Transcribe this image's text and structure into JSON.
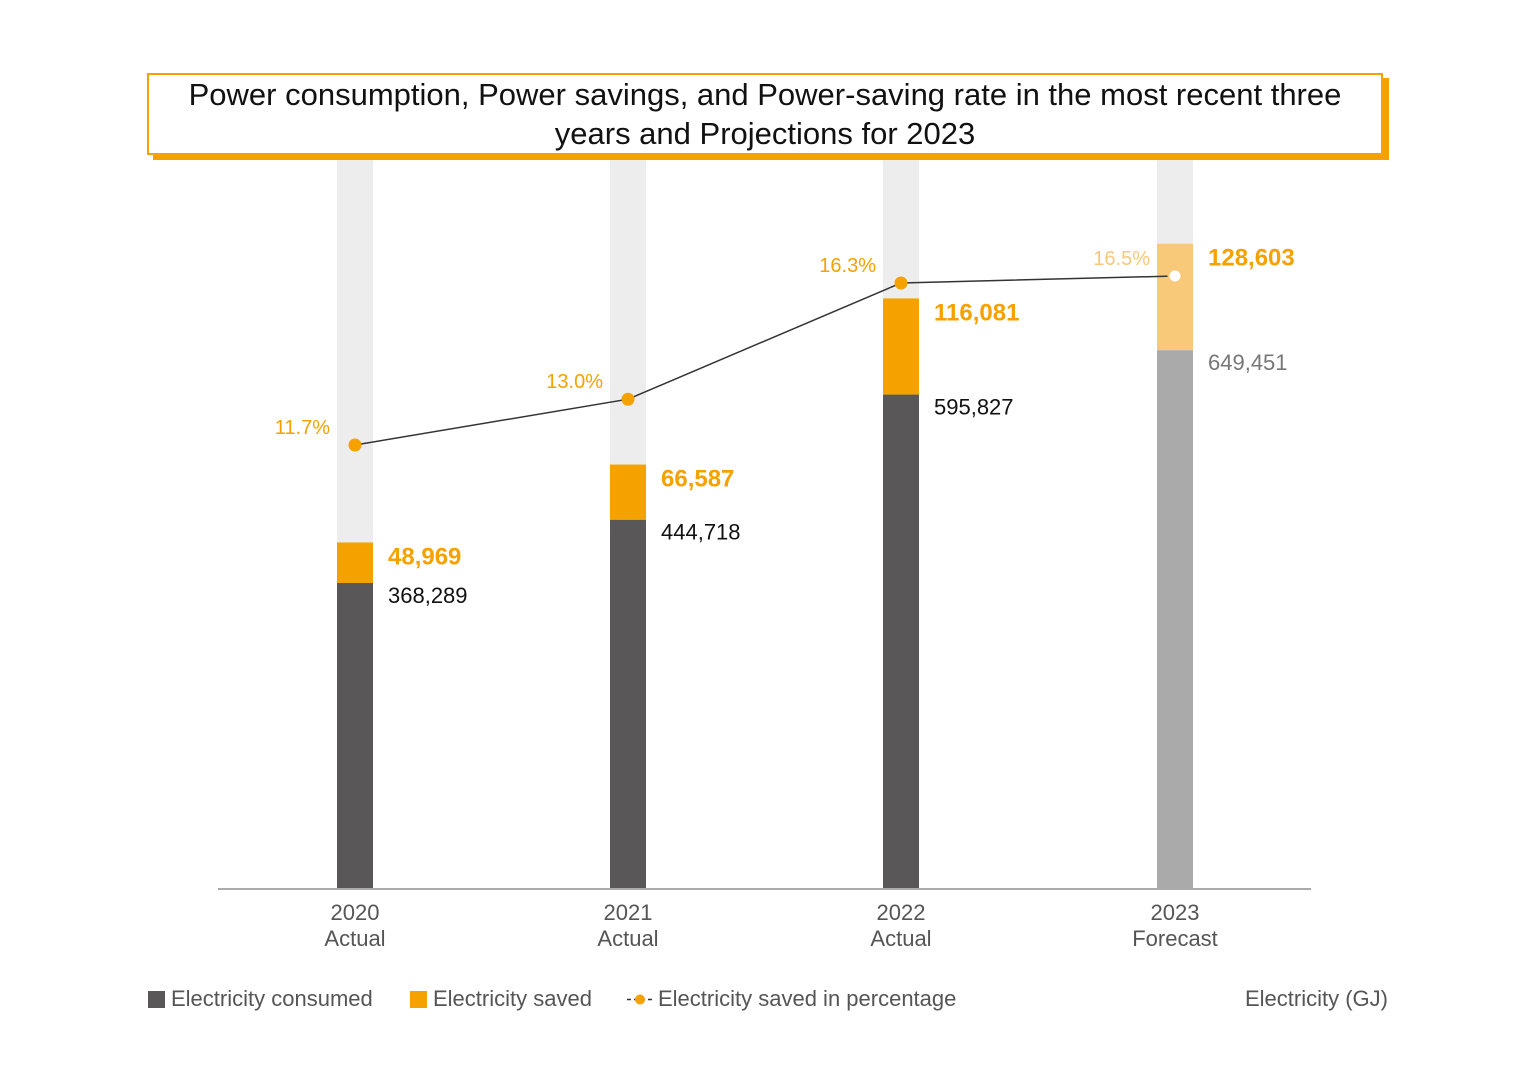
{
  "title": "Power consumption, Power savings, and Power-saving rate in the most recent three years and Projections for 2023",
  "legend": {
    "consumed": "Electricity consumed",
    "saved": "Electricity saved",
    "percentage": "Electricity saved in percentage",
    "unit": "Electricity (GJ)"
  },
  "colors": {
    "consumed": "#595757",
    "saved": "#f5a100",
    "forecast_consumed": "#aaaaaa",
    "forecast_saved": "#f7c978",
    "track": "#ededed",
    "axis": "#aaaaaa",
    "line": "#333333"
  },
  "chart_data": {
    "type": "bar",
    "stacked": true,
    "categories": [
      [
        "2020",
        "Actual"
      ],
      [
        "2021",
        "Actual"
      ],
      [
        "2022",
        "Actual"
      ],
      [
        "2023",
        "Forecast"
      ]
    ],
    "series": [
      {
        "name": "Electricity consumed",
        "values": [
          368289,
          444718,
          595827,
          649451
        ],
        "labels": [
          "368,289",
          "444,718",
          "595,827",
          "649,451"
        ]
      },
      {
        "name": "Electricity saved",
        "values": [
          48969,
          66587,
          116081,
          128603
        ],
        "labels": [
          "48,969",
          "66,587",
          "116,081",
          "128,603"
        ]
      },
      {
        "name": "Electricity saved in percentage",
        "type": "line",
        "values": [
          11.7,
          13.0,
          16.3,
          16.5
        ],
        "labels": [
          "11.7%",
          "13.0%",
          "16.3%",
          "16.5%"
        ]
      }
    ],
    "forecast_index": 3,
    "unit": "Electricity (GJ)"
  }
}
